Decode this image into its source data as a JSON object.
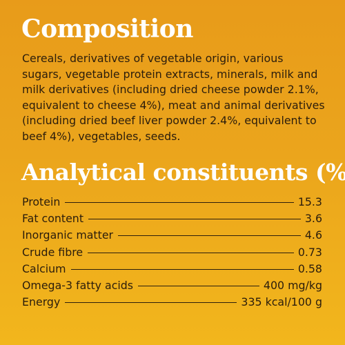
{
  "composition": {
    "title": "Composition",
    "text": "Cereals, derivatives of vegetable origin, various sugars, vegetable protein extracts, minerals, milk and milk derivatives (including dried cheese powder 2.1%, equivalent to cheese 4%), meat and animal derivatives (including dried beef liver powder 2.4%, equivalent to beef 4%), vegetables, seeds."
  },
  "analytical": {
    "title": "Analytical constituents (%)",
    "rows": [
      {
        "label": "Protein",
        "value": "15.3"
      },
      {
        "label": "Fat content",
        "value": "3.6"
      },
      {
        "label": "Inorganic matter",
        "value": "4.6"
      },
      {
        "label": "Crude fibre",
        "value": "0.73"
      },
      {
        "label": "Calcium",
        "value": "0.58"
      },
      {
        "label": "Omega-3 fatty acids",
        "value": "400 mg/kg"
      },
      {
        "label": "Energy",
        "value": "335 kcal/100 g"
      }
    ]
  },
  "colors": {
    "background_top": "#e89b1a",
    "background_bottom": "#f2b61c",
    "heading": "#ffffff",
    "text": "#2b1d0c"
  }
}
